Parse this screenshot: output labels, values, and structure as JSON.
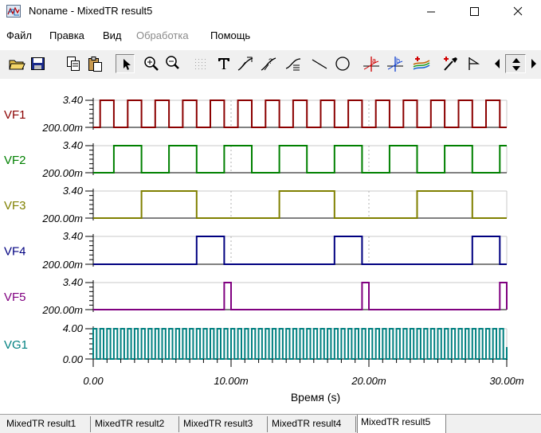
{
  "window": {
    "title": "Noname - MixedTR result5",
    "minimize_label": "—",
    "maximize_label": "☐",
    "close_label": "✕"
  },
  "menu": {
    "items": [
      {
        "label": "Файл",
        "enabled": true
      },
      {
        "label": "Правка",
        "enabled": true
      },
      {
        "label": "Вид",
        "enabled": true
      },
      {
        "label": "Обработка",
        "enabled": false
      },
      {
        "label": "Помощь",
        "enabled": true
      }
    ]
  },
  "toolbar": {
    "buttons": [
      {
        "icon": "open-folder-icon"
      },
      {
        "icon": "save-icon"
      },
      {
        "icon": "copy-icon"
      },
      {
        "icon": "paste-icon"
      },
      {
        "icon": "select-arrow-icon",
        "pressed": true
      },
      {
        "icon": "zoom-in-icon"
      },
      {
        "icon": "zoom-100-icon"
      },
      {
        "icon": "grid-icon"
      },
      {
        "icon": "text-tool-icon"
      },
      {
        "icon": "cursor-a-icon"
      },
      {
        "icon": "cursor-b-icon"
      },
      {
        "icon": "curve-icon"
      },
      {
        "icon": "line-icon"
      },
      {
        "icon": "circle-icon"
      },
      {
        "icon": "marker-a-icon"
      },
      {
        "icon": "marker-b-icon"
      },
      {
        "icon": "waveform-add-icon"
      },
      {
        "icon": "pipette-icon"
      },
      {
        "icon": "flag-icon"
      },
      {
        "icon": "scroll-left-icon"
      },
      {
        "icon": "scroll-updown-icon"
      },
      {
        "icon": "scroll-right-icon"
      }
    ]
  },
  "chart_data": {
    "type": "line",
    "xlabel": "Время (s)",
    "x_ticks": [
      "0.00",
      "10.00m",
      "20.00m",
      "30.00m"
    ],
    "xlim": [
      0,
      0.03
    ],
    "colors": {
      "VF1": "#8b0000",
      "VF2": "#008000",
      "VF3": "#808000",
      "VF4": "#000080",
      "VF5": "#800080",
      "VG1": "#008080"
    },
    "series": [
      {
        "name": "VF1",
        "y_ticks": [
          "3.40",
          "200.00m"
        ],
        "ylim": [
          0.2,
          3.4
        ],
        "kind": "square",
        "period_ms": 2.0,
        "high_start_ms": 0.5,
        "high_width_ms": 1.0
      },
      {
        "name": "VF2",
        "y_ticks": [
          "3.40",
          "200.00m"
        ],
        "ylim": [
          0.2,
          3.4
        ],
        "kind": "square",
        "period_ms": 4.0,
        "high_start_ms": 1.5,
        "high_width_ms": 2.0
      },
      {
        "name": "VF3",
        "y_ticks": [
          "3.40",
          "200.00m"
        ],
        "ylim": [
          0.2,
          3.4
        ],
        "kind": "square",
        "period_ms": 10.0,
        "high_start_ms": 3.5,
        "high_width_ms": 4.0
      },
      {
        "name": "VF4",
        "y_ticks": [
          "3.40",
          "200.00m"
        ],
        "ylim": [
          0.2,
          3.4
        ],
        "kind": "square",
        "period_ms": 10.0,
        "high_start_ms": 7.5,
        "high_width_ms": 2.0
      },
      {
        "name": "VF5",
        "y_ticks": [
          "3.40",
          "200.00m"
        ],
        "ylim": [
          0.2,
          3.4
        ],
        "kind": "square",
        "period_ms": 10.0,
        "high_start_ms": 9.5,
        "high_width_ms": 0.5
      },
      {
        "name": "VG1",
        "y_ticks": [
          "4.00",
          "0.00"
        ],
        "ylim": [
          0,
          4
        ],
        "kind": "square",
        "period_ms": 0.5,
        "high_start_ms": 0.0,
        "high_width_ms": 0.25
      }
    ]
  },
  "tabs": [
    {
      "label": "MixedTR result1",
      "active": false
    },
    {
      "label": "MixedTR result2",
      "active": false
    },
    {
      "label": "MixedTR result3",
      "active": false
    },
    {
      "label": "MixedTR result4",
      "active": false
    },
    {
      "label": "MixedTR result5",
      "active": true
    }
  ]
}
